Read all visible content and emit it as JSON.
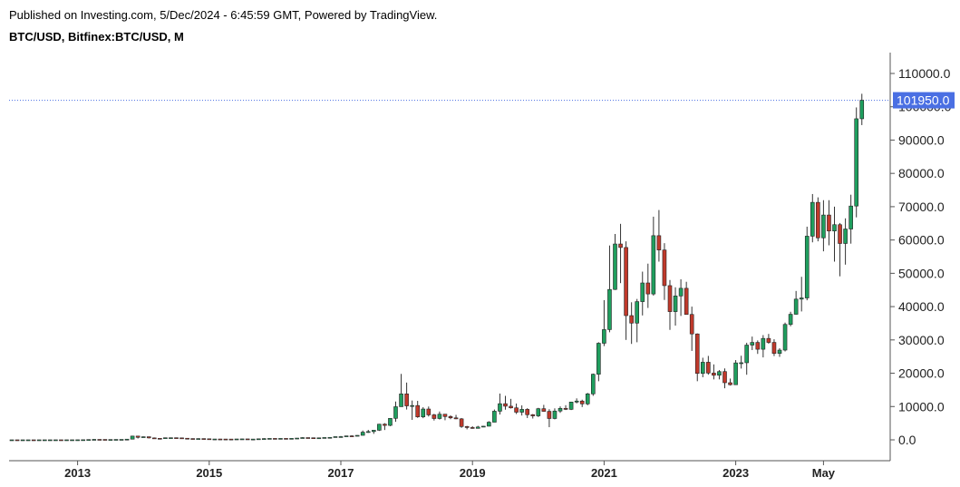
{
  "header": {
    "published": "Published on Investing.com, 5/Dec/2024 - 6:45:59 GMT, Powered by TradingView.",
    "symbol": "BTC/USD, Bitfinex:BTC/USD, M"
  },
  "colors": {
    "up": "#1f9e5e",
    "down": "#c0392b",
    "wick": "#333333",
    "axis": "#555555",
    "price_line": "#4a6fe3",
    "last_label_bg": "#4a6fe3"
  },
  "chart_data": {
    "type": "candlestick",
    "interval": "M",
    "y_axis": {
      "ticks": [
        0,
        10000,
        20000,
        30000,
        40000,
        50000,
        60000,
        70000,
        80000,
        90000,
        100000,
        110000
      ],
      "tick_labels": [
        "0.0",
        "10000.0",
        "20000.0",
        "30000.0",
        "40000.0",
        "50000.0",
        "60000.0",
        "70000.0",
        "80000.0",
        "90000.0",
        "100000.0",
        "110000.0"
      ],
      "ylim": [
        -6000,
        117000
      ],
      "position": "right"
    },
    "x_axis": {
      "tick_labels": [
        "2013",
        "2015",
        "2017",
        "2019",
        "2021",
        "2023",
        "May"
      ],
      "tick_dates": [
        "2013-01",
        "2015-01",
        "2017-01",
        "2019-01",
        "2021-01",
        "2023-01",
        "2024-05"
      ]
    },
    "last_price": {
      "value": 101950,
      "label": "101950.0"
    },
    "candles": [
      [
        "2012-01",
        5,
        6,
        4,
        5.5
      ],
      [
        "2012-02",
        5.5,
        6,
        4.5,
        5
      ],
      [
        "2012-03",
        5,
        5.5,
        4.5,
        5
      ],
      [
        "2012-04",
        5,
        5.5,
        4.8,
        5.2
      ],
      [
        "2012-05",
        5.2,
        5.3,
        5,
        5.1
      ],
      [
        "2012-06",
        5.1,
        7,
        5,
        6.7
      ],
      [
        "2012-07",
        6.7,
        9.5,
        6.5,
        9.4
      ],
      [
        "2012-08",
        9.4,
        16,
        7.5,
        10
      ],
      [
        "2012-09",
        10,
        13,
        10,
        12.4
      ],
      [
        "2012-10",
        12.4,
        13,
        10.5,
        11.2
      ],
      [
        "2012-11",
        11.2,
        12.5,
        10,
        12.5
      ],
      [
        "2012-12",
        12.5,
        14,
        12,
        13.5
      ],
      [
        "2013-01",
        13.5,
        21,
        13,
        20
      ],
      [
        "2013-02",
        20,
        33,
        19,
        33
      ],
      [
        "2013-03",
        33,
        95,
        33,
        93
      ],
      [
        "2013-04",
        93,
        266,
        50,
        139
      ],
      [
        "2013-05",
        139,
        147,
        93,
        129
      ],
      [
        "2013-06",
        129,
        129,
        90,
        97
      ],
      [
        "2013-07",
        97,
        110,
        65,
        106
      ],
      [
        "2013-08",
        106,
        130,
        100,
        129
      ],
      [
        "2013-09",
        129,
        145,
        118,
        138
      ],
      [
        "2013-10",
        138,
        215,
        105,
        205
      ],
      [
        "2013-11",
        205,
        1240,
        200,
        1130
      ],
      [
        "2013-12",
        1130,
        1150,
        400,
        750
      ],
      [
        "2014-01",
        750,
        1000,
        750,
        935
      ],
      [
        "2014-02",
        935,
        935,
        400,
        580
      ],
      [
        "2014-03",
        580,
        700,
        440,
        460
      ],
      [
        "2014-04",
        460,
        550,
        340,
        450
      ],
      [
        "2014-05",
        450,
        650,
        440,
        630
      ],
      [
        "2014-06",
        630,
        680,
        540,
        640
      ],
      [
        "2014-07",
        640,
        650,
        560,
        590
      ],
      [
        "2014-08",
        590,
        600,
        450,
        480
      ],
      [
        "2014-09",
        480,
        500,
        350,
        390
      ],
      [
        "2014-10",
        390,
        415,
        280,
        340
      ],
      [
        "2014-11",
        340,
        460,
        325,
        380
      ],
      [
        "2014-12",
        380,
        380,
        300,
        320
      ],
      [
        "2015-01",
        320,
        320,
        160,
        215
      ],
      [
        "2015-02",
        215,
        270,
        200,
        255
      ],
      [
        "2015-03",
        255,
        300,
        230,
        245
      ],
      [
        "2015-04",
        245,
        260,
        210,
        235
      ],
      [
        "2015-05",
        235,
        250,
        225,
        230
      ],
      [
        "2015-06",
        230,
        270,
        220,
        265
      ],
      [
        "2015-07",
        265,
        320,
        255,
        285
      ],
      [
        "2015-08",
        285,
        285,
        200,
        230
      ],
      [
        "2015-09",
        230,
        250,
        220,
        237
      ],
      [
        "2015-10",
        237,
        335,
        235,
        315
      ],
      [
        "2015-11",
        315,
        500,
        300,
        378
      ],
      [
        "2015-12",
        378,
        470,
        350,
        430
      ],
      [
        "2016-01",
        430,
        460,
        350,
        370
      ],
      [
        "2016-02",
        370,
        445,
        365,
        435
      ],
      [
        "2016-03",
        435,
        440,
        400,
        415
      ],
      [
        "2016-04",
        415,
        470,
        410,
        450
      ],
      [
        "2016-05",
        450,
        550,
        440,
        530
      ],
      [
        "2016-06",
        530,
        780,
        520,
        675
      ],
      [
        "2016-07",
        675,
        680,
        600,
        625
      ],
      [
        "2016-08",
        625,
        625,
        500,
        575
      ],
      [
        "2016-09",
        575,
        625,
        590,
        610
      ],
      [
        "2016-10",
        610,
        720,
        600,
        700
      ],
      [
        "2016-11",
        700,
        760,
        680,
        745
      ],
      [
        "2016-12",
        745,
        980,
        740,
        965
      ],
      [
        "2017-01",
        965,
        1150,
        750,
        970
      ],
      [
        "2017-02",
        970,
        1210,
        920,
        1190
      ],
      [
        "2017-03",
        1190,
        1350,
        890,
        1080
      ],
      [
        "2017-04",
        1080,
        1400,
        1070,
        1350
      ],
      [
        "2017-05",
        1350,
        2800,
        1350,
        2300
      ],
      [
        "2017-06",
        2300,
        3000,
        2100,
        2480
      ],
      [
        "2017-07",
        2480,
        2950,
        1800,
        2880
      ],
      [
        "2017-08",
        2880,
        4800,
        2670,
        4700
      ],
      [
        "2017-09",
        4700,
        5000,
        2950,
        4340
      ],
      [
        "2017-10",
        4340,
        6500,
        4100,
        6450
      ],
      [
        "2017-11",
        6450,
        11500,
        5400,
        9950
      ],
      [
        "2017-12",
        9950,
        19800,
        9950,
        13800
      ],
      [
        "2018-01",
        13800,
        17200,
        9100,
        10200
      ],
      [
        "2018-02",
        10200,
        11800,
        6000,
        10300
      ],
      [
        "2018-03",
        10300,
        11700,
        6600,
        6900
      ],
      [
        "2018-04",
        6900,
        9800,
        6500,
        9250
      ],
      [
        "2018-05",
        9250,
        10000,
        7000,
        7500
      ],
      [
        "2018-06",
        7500,
        7800,
        5800,
        6400
      ],
      [
        "2018-07",
        6400,
        8500,
        6100,
        7700
      ],
      [
        "2018-08",
        7700,
        7700,
        5880,
        7000
      ],
      [
        "2018-09",
        7000,
        7400,
        6200,
        6600
      ],
      [
        "2018-10",
        6600,
        7500,
        6200,
        6300
      ],
      [
        "2018-11",
        6300,
        6550,
        3600,
        4000
      ],
      [
        "2018-12",
        4000,
        4200,
        3150,
        3700
      ],
      [
        "2019-01",
        3700,
        4100,
        3350,
        3450
      ],
      [
        "2019-02",
        3450,
        4200,
        3400,
        3850
      ],
      [
        "2019-03",
        3850,
        4150,
        3800,
        4100
      ],
      [
        "2019-04",
        4100,
        5600,
        4050,
        5300
      ],
      [
        "2019-05",
        5300,
        9100,
        5300,
        8600
      ],
      [
        "2019-06",
        8600,
        13900,
        7600,
        10850
      ],
      [
        "2019-07",
        10850,
        13200,
        9050,
        10100
      ],
      [
        "2019-08",
        10100,
        12300,
        9400,
        9600
      ],
      [
        "2019-09",
        9600,
        10900,
        7750,
        8300
      ],
      [
        "2019-10",
        8300,
        10350,
        7300,
        9150
      ],
      [
        "2019-11",
        9150,
        9500,
        6550,
        7550
      ],
      [
        "2019-12",
        7550,
        7750,
        6400,
        7200
      ],
      [
        "2020-01",
        7200,
        9600,
        6850,
        9350
      ],
      [
        "2020-02",
        9350,
        10500,
        8450,
        8550
      ],
      [
        "2020-03",
        8550,
        9200,
        3800,
        6400
      ],
      [
        "2020-04",
        6400,
        9450,
        6150,
        8650
      ],
      [
        "2020-05",
        8650,
        10050,
        8100,
        9450
      ],
      [
        "2020-06",
        9450,
        10400,
        8950,
        9150
      ],
      [
        "2020-07",
        9150,
        11450,
        8950,
        11350
      ],
      [
        "2020-08",
        11350,
        12450,
        10950,
        11650
      ],
      [
        "2020-09",
        11650,
        12050,
        9850,
        10800
      ],
      [
        "2020-10",
        10800,
        14100,
        10400,
        13800
      ],
      [
        "2020-11",
        13800,
        19900,
        13200,
        19700
      ],
      [
        "2020-12",
        19700,
        29300,
        17600,
        29000
      ],
      [
        "2021-01",
        29000,
        41950,
        28150,
        33100
      ],
      [
        "2021-02",
        33100,
        58350,
        32300,
        45150
      ],
      [
        "2021-03",
        45150,
        61800,
        45000,
        58800
      ],
      [
        "2021-04",
        58800,
        64850,
        47050,
        57750
      ],
      [
        "2021-05",
        57750,
        59600,
        30000,
        37300
      ],
      [
        "2021-06",
        37300,
        41300,
        28800,
        35050
      ],
      [
        "2021-07",
        35050,
        42300,
        29300,
        41500
      ],
      [
        "2021-08",
        41500,
        50500,
        37350,
        47100
      ],
      [
        "2021-09",
        47100,
        52900,
        39600,
        43800
      ],
      [
        "2021-10",
        43800,
        67000,
        43300,
        61300
      ],
      [
        "2021-11",
        61300,
        69000,
        53500,
        57000
      ],
      [
        "2021-12",
        57000,
        59050,
        42000,
        46300
      ],
      [
        "2022-01",
        46300,
        48000,
        33000,
        38500
      ],
      [
        "2022-02",
        38500,
        45800,
        34300,
        43200
      ],
      [
        "2022-03",
        43200,
        48200,
        37200,
        45500
      ],
      [
        "2022-04",
        45500,
        47450,
        37700,
        37650
      ],
      [
        "2022-05",
        37650,
        40000,
        26700,
        31800
      ],
      [
        "2022-06",
        31800,
        31950,
        17600,
        19950
      ],
      [
        "2022-07",
        19950,
        24650,
        18800,
        23300
      ],
      [
        "2022-08",
        23300,
        25200,
        19550,
        20050
      ],
      [
        "2022-09",
        20050,
        22650,
        18150,
        19400
      ],
      [
        "2022-10",
        19400,
        20950,
        18150,
        20500
      ],
      [
        "2022-11",
        20500,
        21450,
        15500,
        17150
      ],
      [
        "2022-12",
        17150,
        18400,
        16300,
        16550
      ],
      [
        "2023-01",
        16550,
        23950,
        16500,
        23100
      ],
      [
        "2023-02",
        23100,
        25250,
        21400,
        23150
      ],
      [
        "2023-03",
        23150,
        29150,
        19550,
        28450
      ],
      [
        "2023-04",
        28450,
        31000,
        26950,
        29250
      ],
      [
        "2023-05",
        29250,
        29850,
        25800,
        27200
      ],
      [
        "2023-06",
        27200,
        31450,
        24750,
        30450
      ],
      [
        "2023-07",
        30450,
        31800,
        28850,
        29250
      ],
      [
        "2023-08",
        29250,
        30200,
        25150,
        25950
      ],
      [
        "2023-09",
        25950,
        27500,
        24900,
        26950
      ],
      [
        "2023-10",
        26950,
        35200,
        26550,
        34650
      ],
      [
        "2023-11",
        34650,
        38450,
        34100,
        37700
      ],
      [
        "2023-12",
        37700,
        44700,
        37600,
        42250
      ],
      [
        "2024-01",
        42250,
        48950,
        38550,
        42600
      ],
      [
        "2024-02",
        42600,
        64000,
        41900,
        61150
      ],
      [
        "2024-03",
        61150,
        73800,
        59300,
        71300
      ],
      [
        "2024-04",
        71300,
        72800,
        59600,
        60650
      ],
      [
        "2024-05",
        60650,
        71950,
        56600,
        67500
      ],
      [
        "2024-06",
        67500,
        71950,
        58400,
        62700
      ],
      [
        "2024-07",
        62700,
        70000,
        53500,
        64600
      ],
      [
        "2024-08",
        64600,
        65100,
        49100,
        58950
      ],
      [
        "2024-09",
        58950,
        66500,
        52600,
        63300
      ],
      [
        "2024-10",
        63300,
        73600,
        58900,
        70200
      ],
      [
        "2024-11",
        70200,
        99800,
        66800,
        96400
      ],
      [
        "2024-12",
        96400,
        103900,
        94500,
        101950
      ]
    ]
  }
}
